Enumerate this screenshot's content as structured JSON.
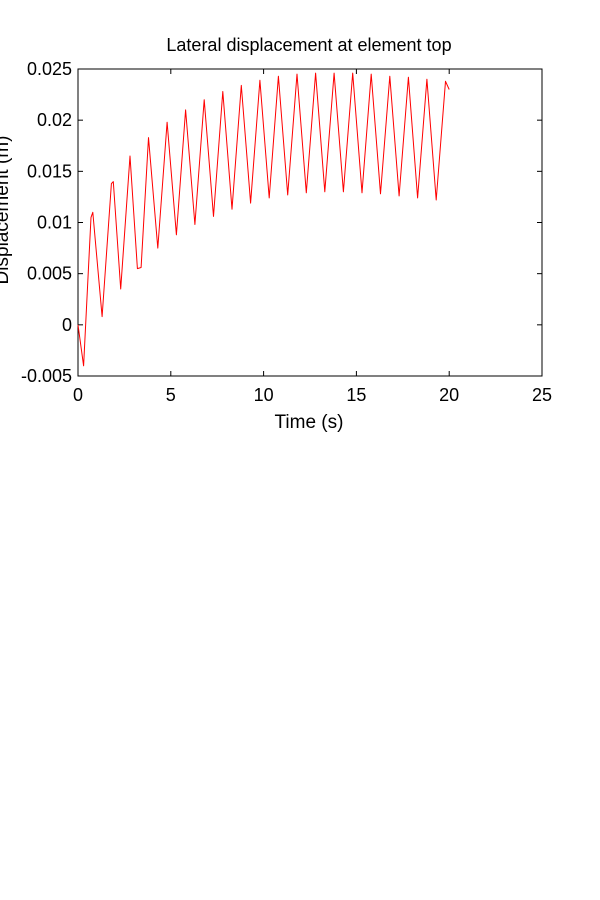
{
  "chart_data": {
    "type": "line",
    "title": "Lateral displacement at element top",
    "xlabel": "Time (s)",
    "ylabel": "Displacement (m)",
    "xlim": [
      0,
      25
    ],
    "ylim": [
      -0.005,
      0.025
    ],
    "xticks": [
      0,
      5,
      10,
      15,
      20,
      25
    ],
    "xtick_labels": [
      "0",
      "5",
      "10",
      "15",
      "20",
      "25"
    ],
    "yticks": [
      -0.005,
      0,
      0.005,
      0.01,
      0.015,
      0.02,
      0.025
    ],
    "ytick_labels": [
      "-0.005",
      "0",
      "0.005",
      "0.01",
      "0.015",
      "0.02",
      "0.025"
    ],
    "grid": false,
    "legend": false,
    "line_color": "#ff0000",
    "series": [
      {
        "x": [
          0,
          0.3,
          0.7,
          0.8,
          1.3,
          1.8,
          1.9,
          2.3,
          2.8,
          3.2,
          3.4,
          3.8,
          4.3,
          4.8,
          5.3,
          5.8,
          6.3,
          6.8,
          7.3,
          7.8,
          8.3,
          8.8,
          9.3,
          9.8,
          10.3,
          10.8,
          11.3,
          11.8,
          12.3,
          12.8,
          13.3,
          13.8,
          14.3,
          14.8,
          15.3,
          15.8,
          16.3,
          16.8,
          17.3,
          17.8,
          18.3,
          18.8,
          19.3,
          19.8,
          20.0
        ],
        "y": [
          0.0,
          -0.004,
          0.0105,
          0.011,
          0.0008,
          0.0138,
          0.014,
          0.0035,
          0.0165,
          0.0055,
          0.0056,
          0.0183,
          0.0075,
          0.0198,
          0.0088,
          0.021,
          0.0098,
          0.022,
          0.0106,
          0.0228,
          0.0113,
          0.0234,
          0.0119,
          0.0239,
          0.0124,
          0.0243,
          0.0127,
          0.0245,
          0.0129,
          0.0246,
          0.013,
          0.0246,
          0.013,
          0.0246,
          0.0129,
          0.0245,
          0.0128,
          0.0243,
          0.0126,
          0.0242,
          0.0124,
          0.024,
          0.0122,
          0.0238,
          0.023
        ]
      }
    ]
  }
}
